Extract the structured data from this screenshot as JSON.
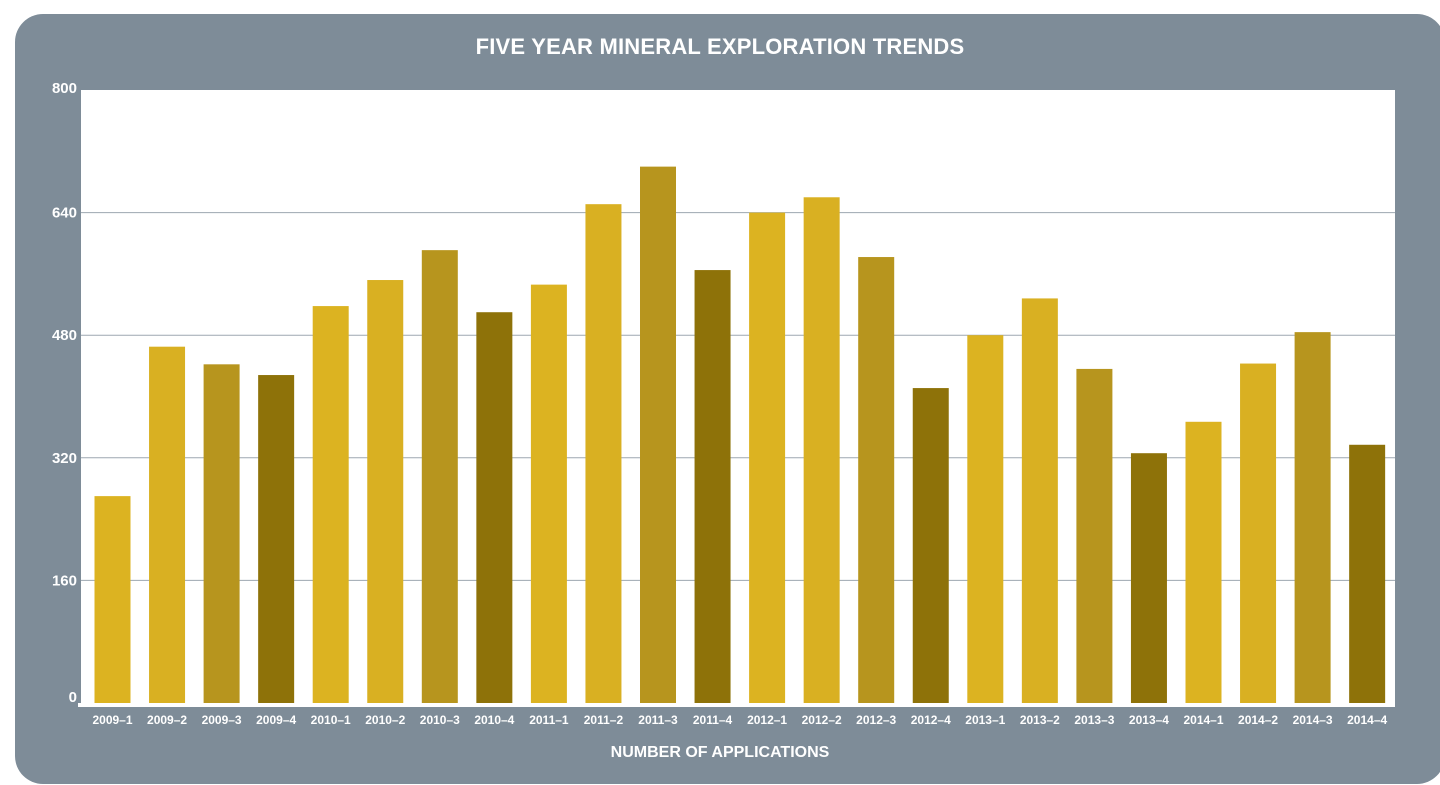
{
  "chart_data": {
    "type": "bar",
    "title": "FIVE YEAR MINERAL EXPLORATION TRENDS",
    "xlabel": "NUMBER OF APPLICATIONS",
    "ylabel": "",
    "ylim": [
      0,
      800
    ],
    "yticks": [
      "800",
      "640",
      "480",
      "320",
      "160",
      "0"
    ],
    "grid": true,
    "categories": [
      "2009–1",
      "2009–2",
      "2009–3",
      "2009–4",
      "2010–1",
      "2010–2",
      "2010–3",
      "2010–4",
      "2011–1",
      "2011–2",
      "2011–3",
      "2011–4",
      "2012–1",
      "2012–2",
      "2012–3",
      "2012–4",
      "2013–1",
      "2013–2",
      "2013–3",
      "2013–4",
      "2014–1",
      "2014–2",
      "2014–3",
      "2014–4"
    ],
    "values": [
      270,
      465,
      442,
      428,
      518,
      552,
      591,
      510,
      546,
      651,
      700,
      565,
      640,
      660,
      582,
      411,
      480,
      528,
      436,
      326,
      367,
      443,
      484,
      337
    ],
    "colors": [
      "#dcb321",
      "#d9b022",
      "#b7951e",
      "#8e7209"
    ],
    "background": "#7e8c98",
    "plot_background": "#ffffff",
    "grid_color": "#9da7b1"
  }
}
